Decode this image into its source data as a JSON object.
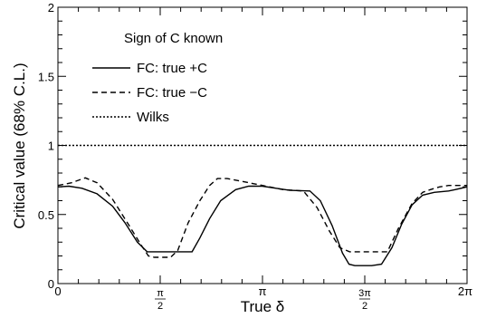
{
  "chart_data": {
    "type": "line",
    "xlabel": "True δ",
    "ylabel": "Critical value (68% C.L.)",
    "xlim": [
      0,
      6.2832
    ],
    "ylim": [
      0,
      2
    ],
    "grid": false,
    "legend_position": "top-left",
    "legend_title": "Sign of C known",
    "y_ticks": [
      {
        "value": 0,
        "label": "0"
      },
      {
        "value": 0.5,
        "label": "0.5"
      },
      {
        "value": 1,
        "label": "1"
      },
      {
        "value": 1.5,
        "label": "1.5"
      },
      {
        "value": 2,
        "label": "2"
      }
    ],
    "x_ticks": [
      {
        "value": 0,
        "label": "0"
      },
      {
        "value": 1.5708,
        "num": "π",
        "den": "2"
      },
      {
        "value": 3.1416,
        "label": "π"
      },
      {
        "value": 4.7124,
        "num": "3π",
        "den": "2"
      },
      {
        "value": 6.2832,
        "label": "2π"
      }
    ],
    "series": [
      {
        "name": "FC: true +C",
        "style": "solid",
        "color": "#000000",
        "x": [
          0,
          0.17,
          0.37,
          0.6,
          0.84,
          1.03,
          1.22,
          1.37,
          1.52,
          1.63,
          1.9,
          2.06,
          2.18,
          2.33,
          2.5,
          2.73,
          2.93,
          3.14,
          3.35,
          3.56,
          3.87,
          4.03,
          4.21,
          4.37,
          4.47,
          4.56,
          4.65,
          4.82,
          4.97,
          5.13,
          5.28,
          5.44,
          5.6,
          5.78,
          6.0,
          6.1,
          6.28
        ],
        "y": [
          0.7,
          0.705,
          0.69,
          0.65,
          0.56,
          0.44,
          0.3,
          0.23,
          0.23,
          0.23,
          0.23,
          0.23,
          0.33,
          0.47,
          0.6,
          0.68,
          0.705,
          0.705,
          0.69,
          0.675,
          0.67,
          0.6,
          0.42,
          0.22,
          0.14,
          0.13,
          0.13,
          0.13,
          0.14,
          0.26,
          0.43,
          0.57,
          0.64,
          0.66,
          0.67,
          0.68,
          0.7
        ]
      },
      {
        "name": "FC: true −C",
        "style": "dashed",
        "color": "#000000",
        "x": [
          0,
          0.21,
          0.42,
          0.6,
          0.84,
          1.08,
          1.29,
          1.39,
          1.48,
          1.57,
          1.73,
          1.84,
          2.0,
          2.18,
          2.33,
          2.45,
          2.6,
          2.83,
          3.14,
          3.46,
          3.77,
          3.98,
          4.17,
          4.33,
          4.48,
          4.6,
          4.73,
          4.86,
          5.06,
          5.23,
          5.44,
          5.6,
          5.72,
          5.86,
          6.0,
          6.28
        ],
        "y": [
          0.71,
          0.73,
          0.765,
          0.73,
          0.61,
          0.43,
          0.27,
          0.2,
          0.19,
          0.19,
          0.19,
          0.24,
          0.44,
          0.6,
          0.71,
          0.76,
          0.76,
          0.74,
          0.71,
          0.68,
          0.67,
          0.55,
          0.38,
          0.26,
          0.23,
          0.23,
          0.23,
          0.23,
          0.23,
          0.4,
          0.58,
          0.66,
          0.68,
          0.7,
          0.71,
          0.71
        ]
      },
      {
        "name": "Wilks",
        "style": "dotted",
        "color": "#000000",
        "x": [
          0,
          6.2832
        ],
        "y": [
          1,
          1
        ]
      }
    ]
  }
}
